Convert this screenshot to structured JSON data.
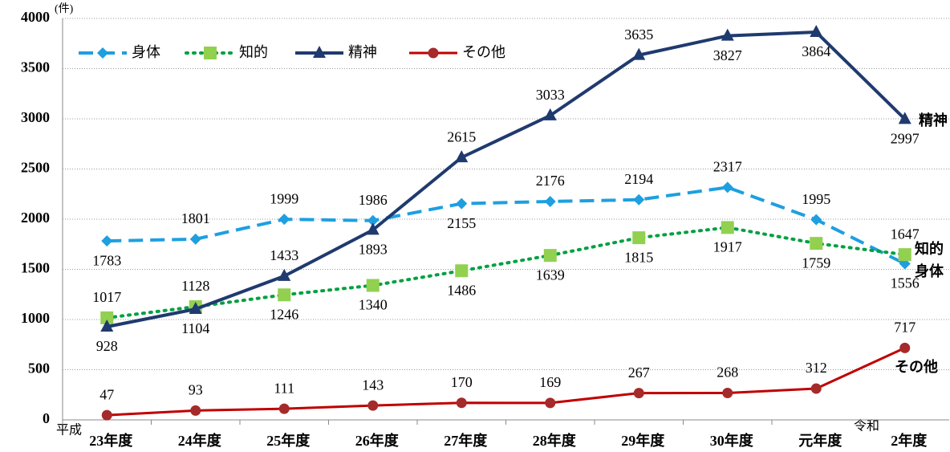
{
  "chart_data": {
    "type": "line",
    "y_unit_label": "(件)",
    "categories": [
      "23年度",
      "24年度",
      "25年度",
      "26年度",
      "27年度",
      "28年度",
      "29年度",
      "30年度",
      "元年度",
      "2年度"
    ],
    "era_labels": [
      "平成",
      "令和"
    ],
    "series": [
      {
        "name": "身体",
        "color": "#1e9fe0",
        "marker_color": "#1e9fe0",
        "values": [
          1783,
          1801,
          1999,
          1986,
          2155,
          2176,
          2194,
          2317,
          1995,
          1556
        ]
      },
      {
        "name": "知的",
        "color": "#00a040",
        "marker_color": "#92d050",
        "values": [
          1017,
          1128,
          1246,
          1340,
          1486,
          1639,
          1815,
          1917,
          1759,
          1647
        ]
      },
      {
        "name": "精神",
        "color": "#1f3a6e",
        "marker_color": "#1f3a6e",
        "values": [
          928,
          1104,
          1433,
          1893,
          2615,
          3033,
          3635,
          3827,
          3864,
          2997
        ]
      },
      {
        "name": "その他",
        "color": "#c00000",
        "marker_color": "#a52a2a",
        "values": [
          47,
          93,
          111,
          143,
          170,
          169,
          267,
          268,
          312,
          717
        ]
      }
    ],
    "ylim": [
      0,
      4000
    ],
    "yticks": [
      0,
      500,
      1000,
      1500,
      2000,
      2500,
      3000,
      3500,
      4000
    ],
    "grid": true,
    "legend": "top-left"
  }
}
